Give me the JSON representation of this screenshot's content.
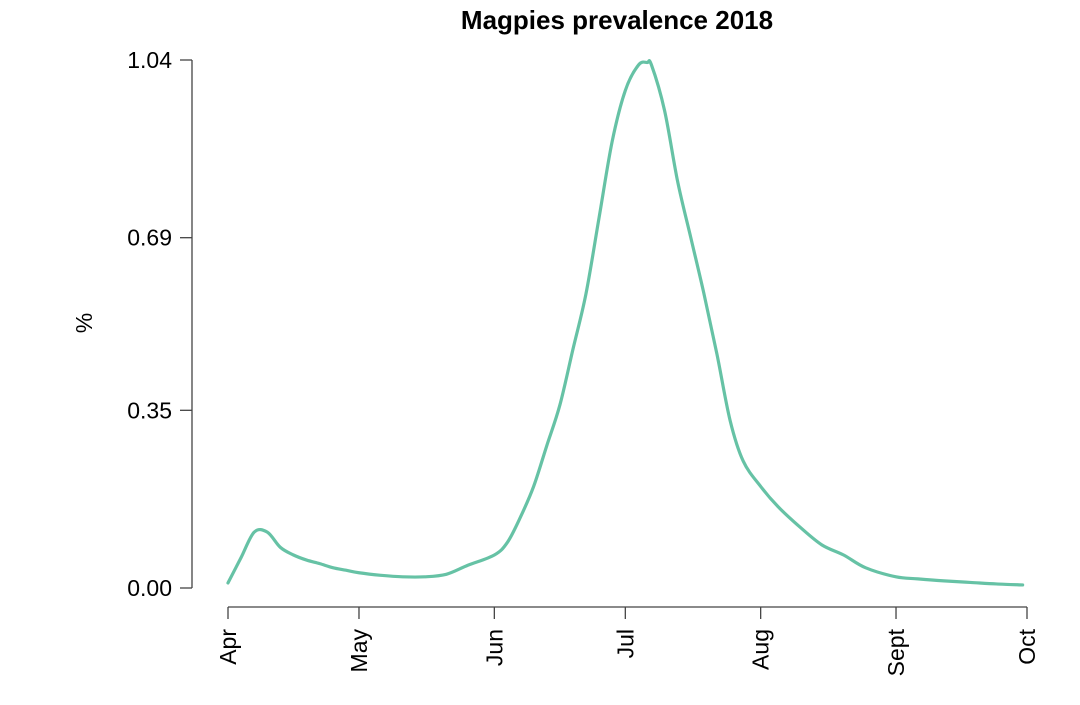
{
  "chart_data": {
    "type": "line",
    "title": "Magpies prevalence 2018",
    "xlabel": "",
    "ylabel": "%",
    "y_ticks": [
      "0.00",
      "0.35",
      "0.69",
      "1.04"
    ],
    "y_tick_values": [
      0.0,
      0.35,
      0.69,
      1.04
    ],
    "ylim": [
      0.0,
      1.04
    ],
    "x_ticks": [
      "Apr",
      "May",
      "Jun",
      "Jul",
      "Aug",
      "Sept",
      "Oct"
    ],
    "x_tick_dates": [
      "2018-04-01",
      "2018-05-01",
      "2018-06-01",
      "2018-07-01",
      "2018-08-01",
      "2018-09-01",
      "2018-10-01"
    ],
    "xlim": [
      "2018-04-01",
      "2018-10-01"
    ],
    "grid": false,
    "line_color": "#66c2a5",
    "series": [
      {
        "x": [
          "2018-04-01",
          "2018-04-04",
          "2018-04-07",
          "2018-04-10",
          "2018-04-13",
          "2018-04-16",
          "2018-04-19",
          "2018-04-22",
          "2018-04-25",
          "2018-04-28",
          "2018-05-01",
          "2018-05-06",
          "2018-05-11",
          "2018-05-16",
          "2018-05-21",
          "2018-05-26",
          "2018-06-01",
          "2018-06-04",
          "2018-06-07",
          "2018-06-10",
          "2018-06-13",
          "2018-06-16",
          "2018-06-19",
          "2018-06-22",
          "2018-06-25",
          "2018-06-28",
          "2018-07-01",
          "2018-07-04",
          "2018-07-06",
          "2018-07-07",
          "2018-07-10",
          "2018-07-13",
          "2018-07-16",
          "2018-07-19",
          "2018-07-22",
          "2018-07-25",
          "2018-07-28",
          "2018-08-01",
          "2018-08-05",
          "2018-08-10",
          "2018-08-15",
          "2018-08-20",
          "2018-08-25",
          "2018-09-01",
          "2018-09-06",
          "2018-09-12",
          "2018-09-18",
          "2018-09-24",
          "2018-09-30"
        ],
        "y": [
          0.01,
          0.06,
          0.11,
          0.11,
          0.08,
          0.065,
          0.055,
          0.048,
          0.04,
          0.035,
          0.03,
          0.025,
          0.022,
          0.022,
          0.027,
          0.045,
          0.065,
          0.09,
          0.14,
          0.2,
          0.28,
          0.36,
          0.47,
          0.58,
          0.73,
          0.88,
          0.98,
          1.03,
          1.035,
          1.03,
          0.94,
          0.8,
          0.69,
          0.58,
          0.46,
          0.33,
          0.25,
          0.2,
          0.16,
          0.12,
          0.085,
          0.065,
          0.04,
          0.022,
          0.018,
          0.014,
          0.011,
          0.008,
          0.006
        ]
      }
    ]
  }
}
